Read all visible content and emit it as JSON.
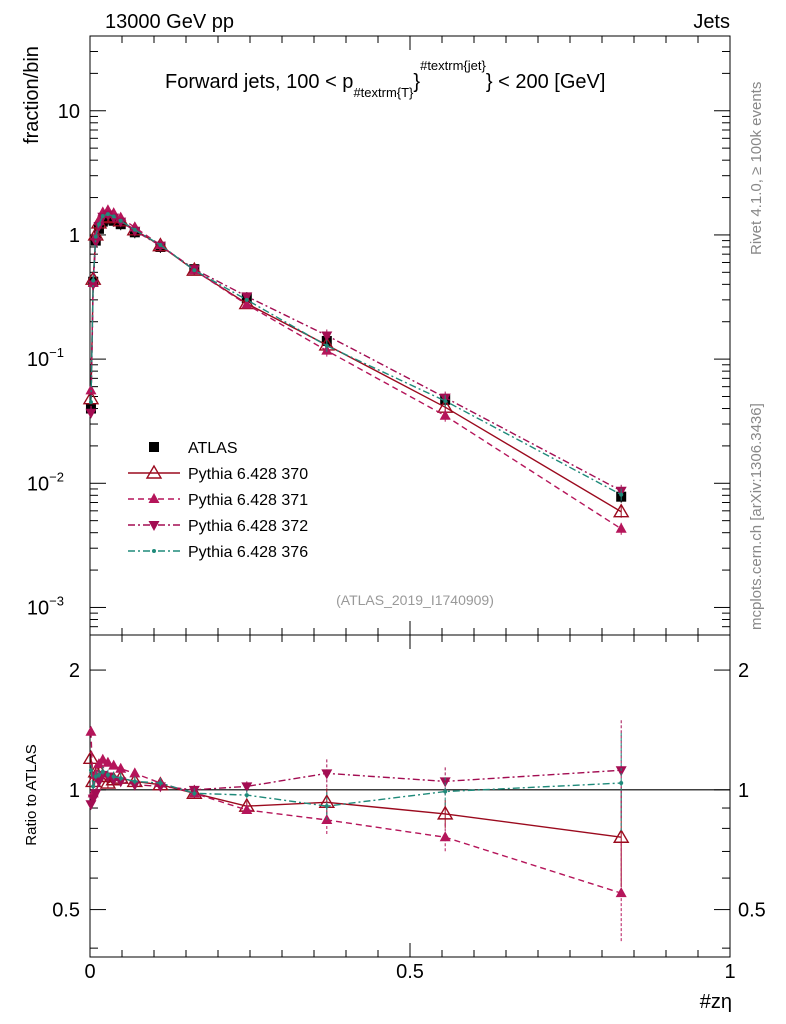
{
  "header": {
    "left": "13000 GeV pp",
    "right": "Jets"
  },
  "side_labels": {
    "rivet": "Rivet 4.1.0, ≥ 100k events",
    "mcplots": "mcplots.cern.ch [arXiv:1306.3436]"
  },
  "colors": {
    "atlas": "#000000",
    "p370": "#9b0a1e",
    "p371": "#b5155a",
    "p372": "#a30d52",
    "p376": "#1f8a7a",
    "ref_line": "#000000"
  },
  "chart_data": [
    {
      "panel": "main",
      "type": "line",
      "title_main": "Forward jets, 100 < p",
      "title_sub": "#textrm{T}",
      "title_sup": "#textrm{jet}",
      "title_end": "} < 200 [GeV]",
      "ylabel": "fraction/bin",
      "yscale": "log",
      "ylim": [
        0.0006,
        40
      ],
      "xlim": [
        0,
        1
      ],
      "ytick_labels": [
        {
          "value": 10,
          "base": "10",
          "exp": ""
        },
        {
          "value": 1,
          "base": "1",
          "exp": ""
        },
        {
          "value": 0.1,
          "base": "10",
          "exp": "−1"
        },
        {
          "value": 0.01,
          "base": "10",
          "exp": "−2"
        },
        {
          "value": 0.001,
          "base": "10",
          "exp": "−3"
        }
      ],
      "analysis_tag": "(ATLAS_2019_I1740909)",
      "x": [
        0.0015,
        0.005,
        0.009,
        0.014,
        0.02,
        0.028,
        0.037,
        0.048,
        0.07,
        0.11,
        0.163,
        0.245,
        0.37,
        0.555,
        0.83
      ],
      "series": [
        {
          "name": "ATLAS",
          "style": "data",
          "values": [
            0.04,
            0.42,
            0.9,
            1.12,
            1.28,
            1.35,
            1.3,
            1.22,
            1.05,
            0.8,
            0.53,
            0.31,
            0.14,
            0.047,
            0.0078
          ]
        },
        {
          "name": "Pythia 6.428 370",
          "style": "open-triangle-solid",
          "values": [
            0.048,
            0.44,
            1.0,
            1.25,
            1.38,
            1.4,
            1.38,
            1.3,
            1.1,
            0.82,
            0.52,
            0.28,
            0.13,
            0.041,
            0.0059
          ]
        },
        {
          "name": "Pythia 6.428 371",
          "style": "triangle-dashed",
          "values": [
            0.056,
            0.41,
            0.98,
            1.3,
            1.52,
            1.58,
            1.5,
            1.38,
            1.15,
            0.83,
            0.52,
            0.275,
            0.117,
            0.035,
            0.0043
          ]
        },
        {
          "name": "Pythia 6.428 372",
          "style": "down-triangle-dashdot",
          "values": [
            0.037,
            0.4,
            0.88,
            1.18,
            1.4,
            1.46,
            1.38,
            1.28,
            1.08,
            0.82,
            0.53,
            0.32,
            0.155,
            0.049,
            0.0087
          ]
        },
        {
          "name": "Pythia 6.428 376",
          "style": "dot-dashdot",
          "values": [
            0.045,
            0.43,
            0.97,
            1.22,
            1.42,
            1.47,
            1.41,
            1.3,
            1.1,
            0.83,
            0.52,
            0.3,
            0.128,
            0.046,
            0.0081
          ]
        }
      ]
    },
    {
      "panel": "ratio",
      "type": "line",
      "ylabel": "Ratio to ATLAS",
      "xlabel": "#zη",
      "yscale": "log",
      "ylim": [
        0.38,
        2.45
      ],
      "xlim": [
        0,
        1
      ],
      "ytick_labels": [
        {
          "value": 2,
          "label": "2"
        },
        {
          "value": 1,
          "label": "1"
        },
        {
          "value": 0.5,
          "label": "0.5"
        }
      ],
      "xtick_labels": [
        {
          "value": 0,
          "label": "0"
        },
        {
          "value": 0.5,
          "label": "0.5"
        },
        {
          "value": 1,
          "label": "1"
        }
      ],
      "x": [
        0.0015,
        0.005,
        0.009,
        0.014,
        0.02,
        0.028,
        0.037,
        0.048,
        0.07,
        0.11,
        0.163,
        0.245,
        0.37,
        0.555,
        0.83
      ],
      "series": [
        {
          "name": "Pythia 6.428 370",
          "style": "open-triangle-solid",
          "values": [
            1.2,
            1.05,
            1.11,
            1.12,
            1.08,
            1.04,
            1.06,
            1.07,
            1.05,
            1.03,
            0.98,
            0.91,
            0.93,
            0.87,
            0.76
          ]
        },
        {
          "name": "Pythia 6.428 371",
          "style": "triangle-dashed",
          "values": [
            1.4,
            0.98,
            1.09,
            1.16,
            1.19,
            1.17,
            1.15,
            1.13,
            1.1,
            1.04,
            0.98,
            0.89,
            0.84,
            0.76,
            0.55
          ]
        },
        {
          "name": "Pythia 6.428 372",
          "style": "down-triangle-dashdot",
          "values": [
            0.92,
            0.95,
            0.98,
            1.05,
            1.09,
            1.08,
            1.06,
            1.05,
            1.03,
            1.02,
            1.0,
            1.02,
            1.1,
            1.05,
            1.12
          ]
        },
        {
          "name": "Pythia 6.428 376",
          "style": "dot-dashdot",
          "values": [
            1.12,
            1.02,
            1.08,
            1.09,
            1.11,
            1.09,
            1.08,
            1.07,
            1.05,
            1.04,
            0.98,
            0.97,
            0.91,
            0.99,
            1.04
          ]
        }
      ]
    }
  ]
}
